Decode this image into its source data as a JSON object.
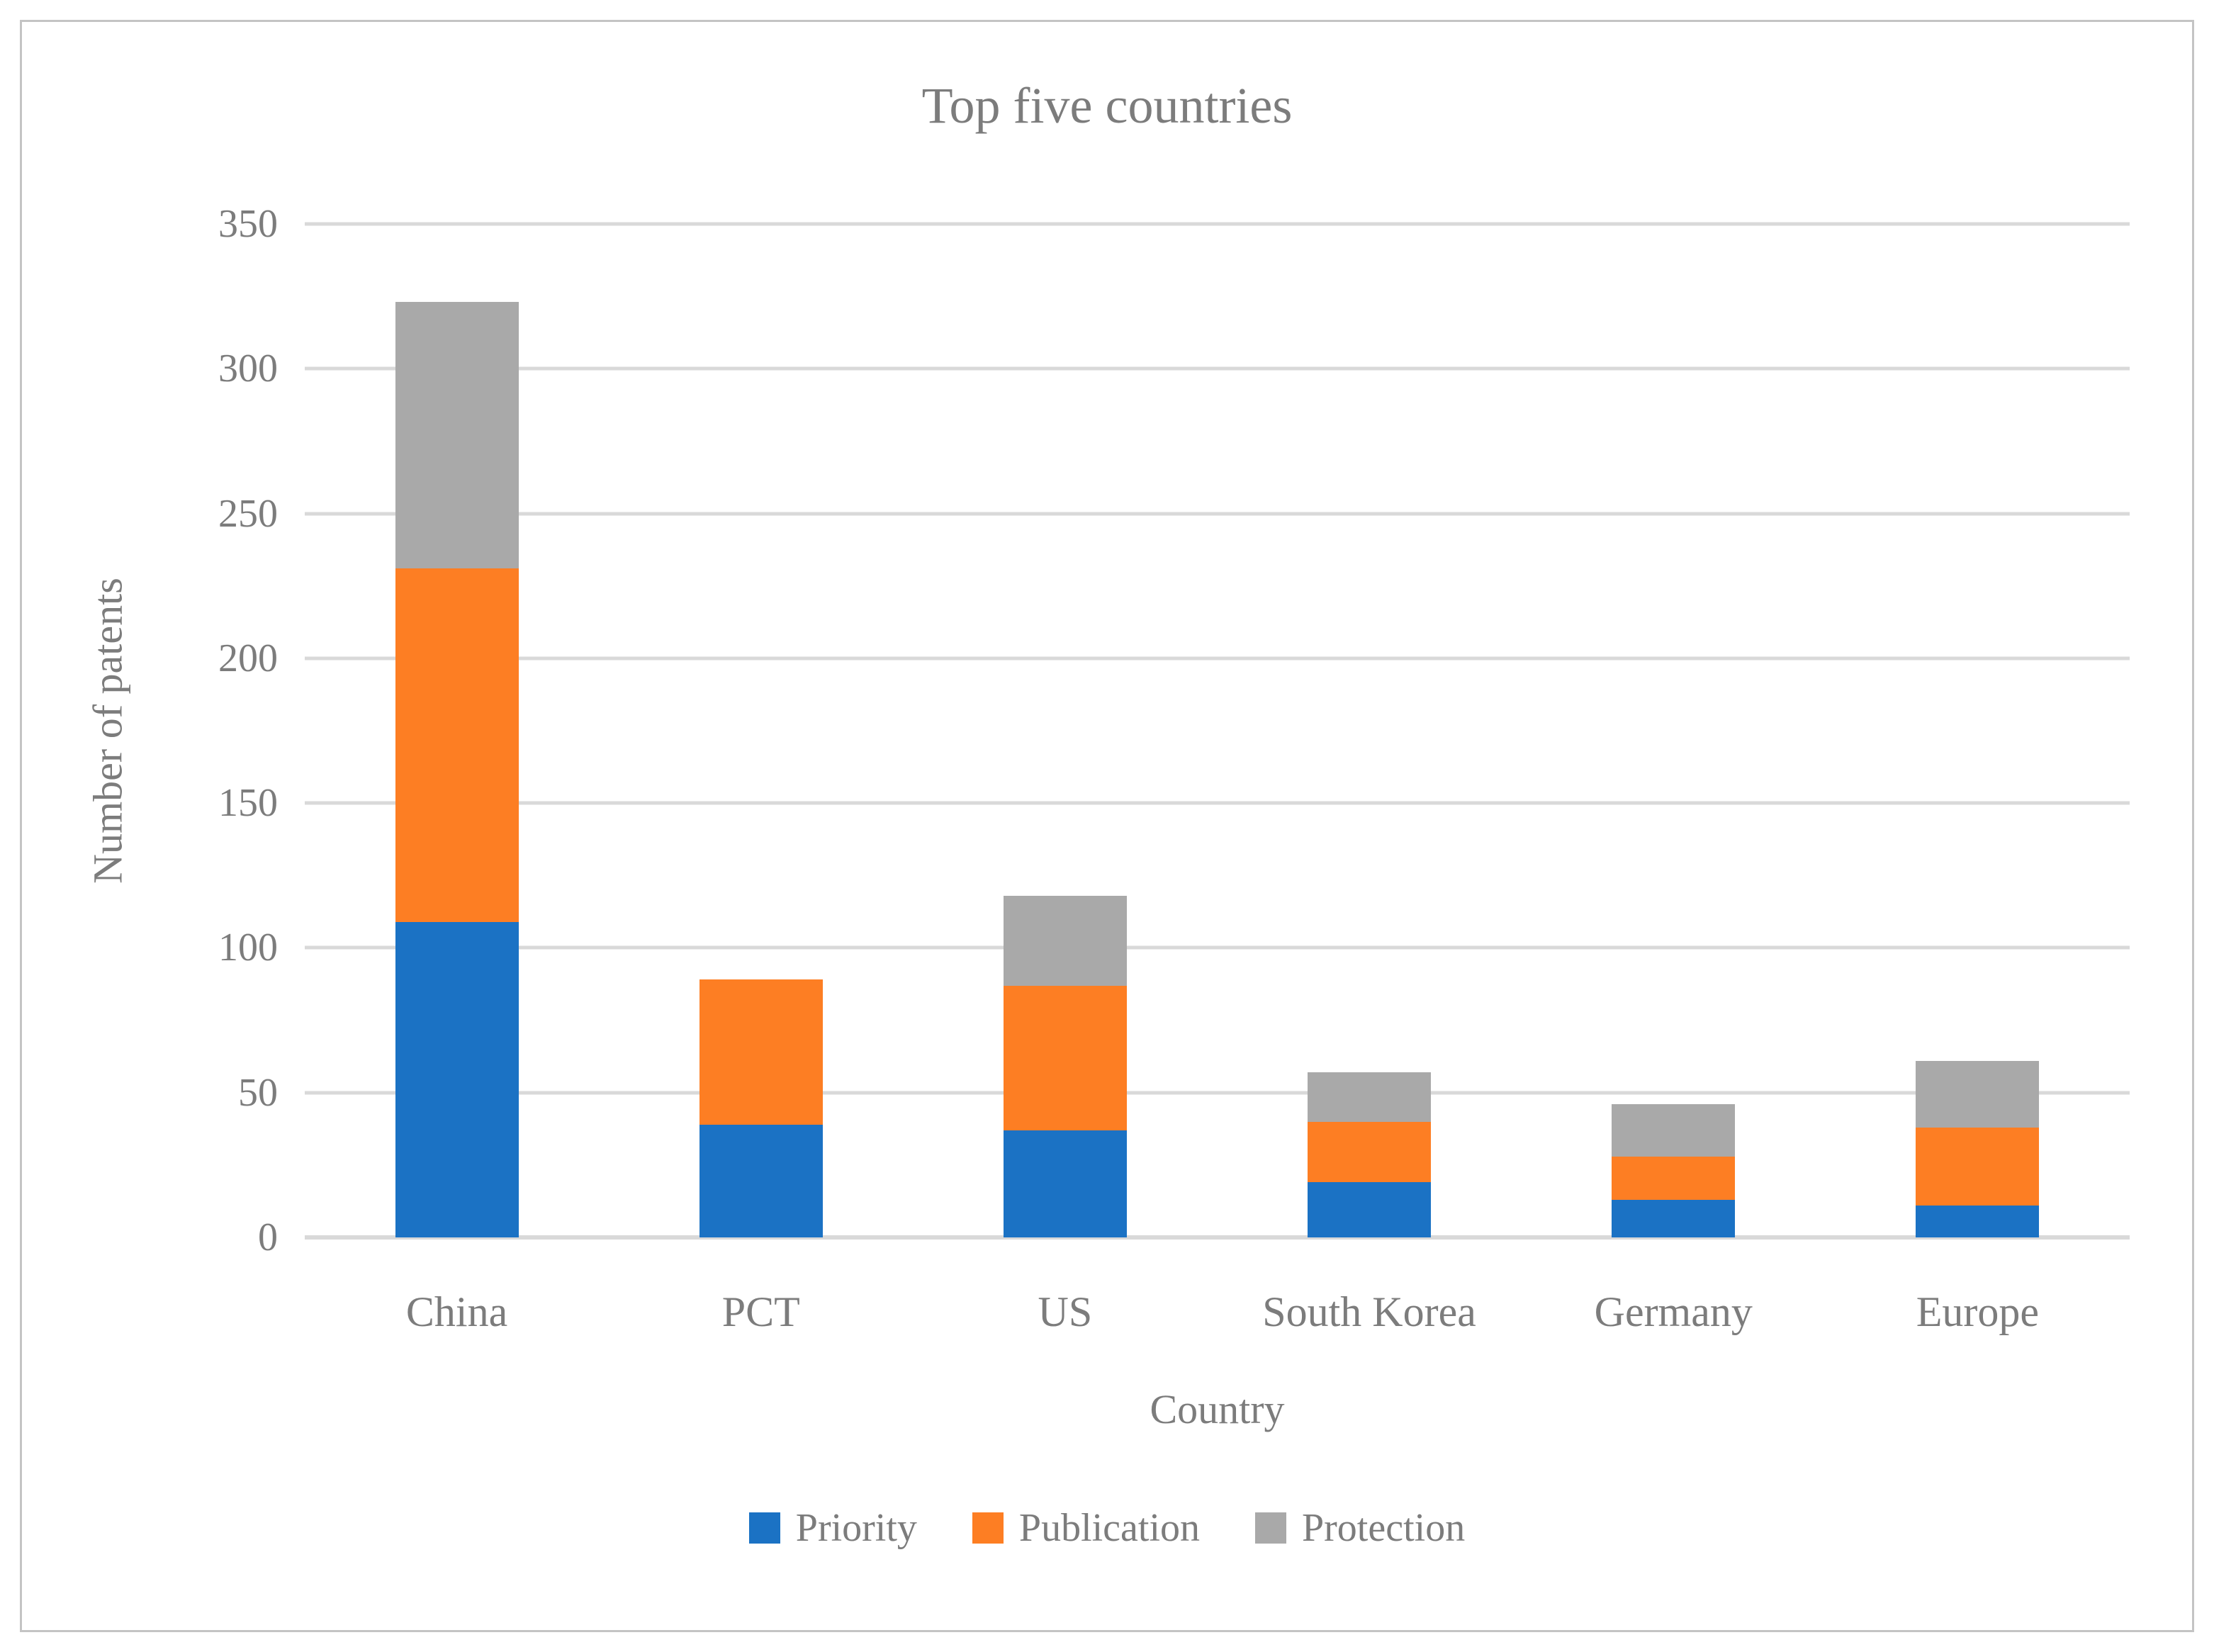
{
  "figure": {
    "background": "#FFFFFF",
    "border_color": "#C4C4C4",
    "text_color": "#7C7C7C"
  },
  "chart_data": {
    "type": "bar",
    "stacked": true,
    "title": "Top five countries",
    "xlabel": "Country",
    "ylabel": "Number of patents",
    "categories": [
      "China",
      "PCT",
      "US",
      "South Korea",
      "Germany",
      "Europe"
    ],
    "series": [
      {
        "name": "Priority",
        "color": "#1B72C4",
        "values": [
          109,
          39,
          37,
          19,
          13,
          11
        ]
      },
      {
        "name": "Publication",
        "color": "#FD7E23",
        "values": [
          122,
          50,
          50,
          21,
          15,
          27
        ]
      },
      {
        "name": "Protection",
        "color": "#A9A9A9",
        "values": [
          92,
          0,
          31,
          17,
          18,
          23
        ]
      }
    ],
    "stack_totals": [
      323,
      89,
      118,
      57,
      46,
      61
    ],
    "ylim": [
      0,
      350
    ],
    "yticks": [
      0,
      50,
      100,
      150,
      200,
      250,
      300,
      350
    ],
    "gridlines": true,
    "gridline_color": "#D9D9D9",
    "legend_position": "bottom"
  }
}
